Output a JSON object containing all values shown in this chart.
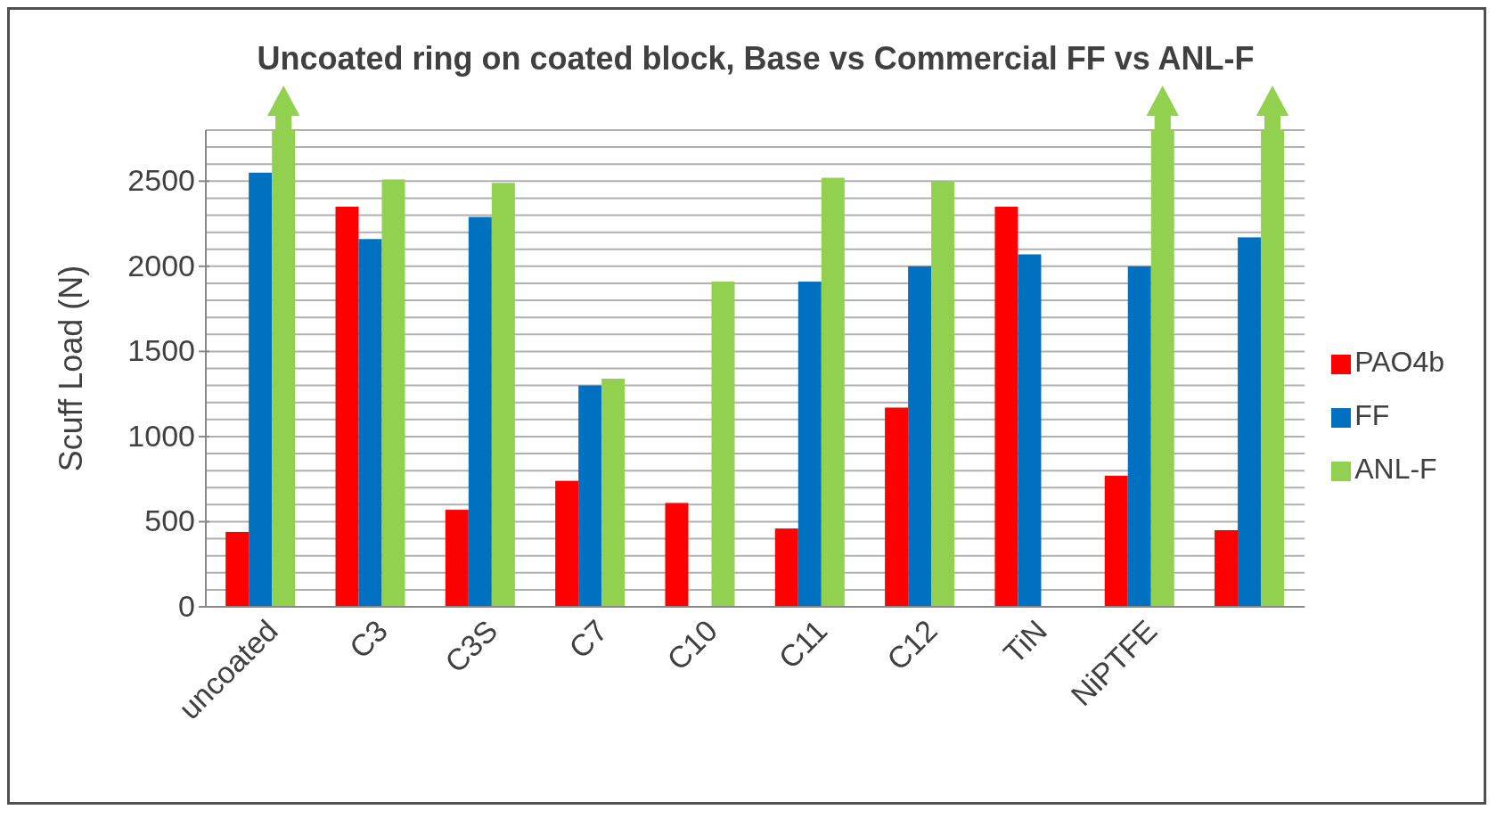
{
  "chart_data": {
    "type": "bar",
    "title": "Uncoated ring on coated block, Base vs Commercial FF vs ANL-F",
    "ylabel": "Scuff Load (N)",
    "categories": [
      "uncoated",
      "C3",
      "C3S",
      "C7",
      "C10",
      "C11",
      "C12",
      "TiN",
      "NiPTFE",
      null
    ],
    "series": [
      {
        "name": "PAO4b",
        "color": "#ff0000",
        "values": [
          440,
          2350,
          570,
          740,
          610,
          460,
          1170,
          2350,
          770,
          450
        ]
      },
      {
        "name": "FF",
        "color": "#0070c0",
        "values": [
          2550,
          2160,
          2290,
          1300,
          null,
          1910,
          2000,
          2070,
          2000,
          2170
        ]
      },
      {
        "name": "ANL-F",
        "color": "#92d050",
        "values": [
          2800,
          2510,
          2490,
          1340,
          1910,
          2520,
          2500,
          null,
          2800,
          2800
        ]
      }
    ],
    "ylim": [
      0,
      2800
    ],
    "yticks": [
      0,
      {
        "value": 100,
        "label": null
      },
      {
        "value": 200,
        "label": null
      },
      {
        "value": 300,
        "label": null
      },
      {
        "value": 400,
        "label": null
      },
      500,
      {
        "value": 600,
        "label": null
      },
      {
        "value": 700,
        "label": null
      },
      {
        "value": 800,
        "label": null
      },
      {
        "value": 900,
        "label": null
      },
      1000,
      {
        "value": 1100,
        "label": null
      },
      {
        "value": 1200,
        "label": null
      },
      {
        "value": 1300,
        "label": null
      },
      {
        "value": 1400,
        "label": null
      },
      1500,
      {
        "value": 1600,
        "label": null
      },
      {
        "value": 1700,
        "label": null
      },
      {
        "value": 1800,
        "label": null
      },
      {
        "value": 1900,
        "label": null
      },
      2000,
      {
        "value": 2100,
        "label": null
      },
      {
        "value": 2200,
        "label": null
      },
      {
        "value": 2300,
        "label": null
      },
      {
        "value": 2400,
        "label": null
      },
      2500,
      {
        "value": 2600,
        "label": null
      },
      {
        "value": 2700,
        "label": null
      },
      {
        "value": 2800,
        "label": null
      }
    ],
    "grid": "y",
    "legend": "right"
  }
}
